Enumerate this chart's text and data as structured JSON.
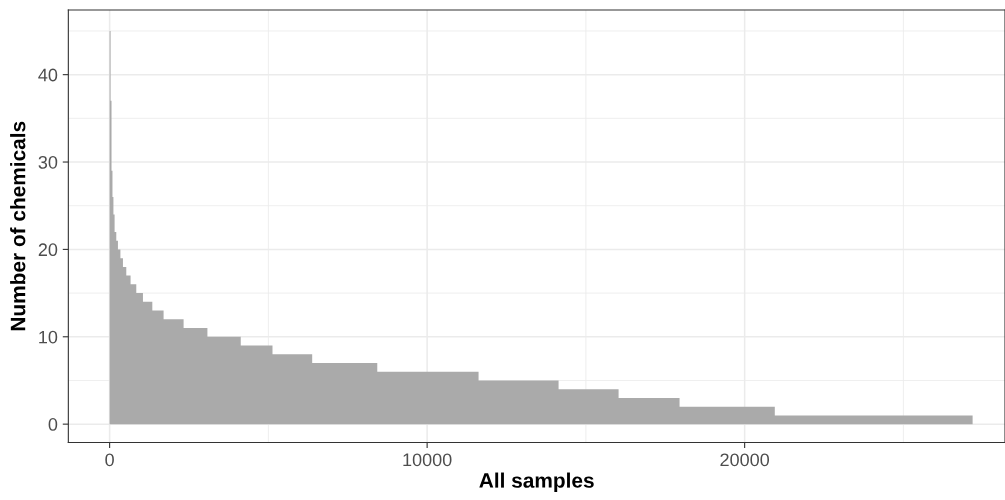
{
  "chart_data": {
    "type": "area",
    "xlabel": "All samples",
    "ylabel": "Number of chemicals",
    "x": [
      0,
      30,
      60,
      90,
      120,
      157,
      210,
      262,
      340,
      420,
      525,
      660,
      840,
      1050,
      1345,
      1700,
      2330,
      3080,
      4130,
      5130,
      6380,
      8430,
      11620,
      14140,
      16030,
      17950,
      20950,
      27180
    ],
    "series": [
      {
        "color": "#aaaaaa",
        "values": [
          45,
          37,
          29,
          26,
          24,
          22,
          21,
          20,
          19,
          18,
          17,
          16,
          15,
          14,
          13,
          12,
          11,
          10,
          9,
          8,
          7,
          6,
          5,
          4,
          3,
          2,
          1,
          1
        ]
      }
    ],
    "xlim": [
      -1300,
      28200
    ],
    "xticks": [
      0,
      10000,
      20000
    ],
    "ylim": [
      -2.1,
      47.4
    ],
    "yticks": [
      0,
      10,
      20,
      30,
      40
    ],
    "grid": true
  }
}
